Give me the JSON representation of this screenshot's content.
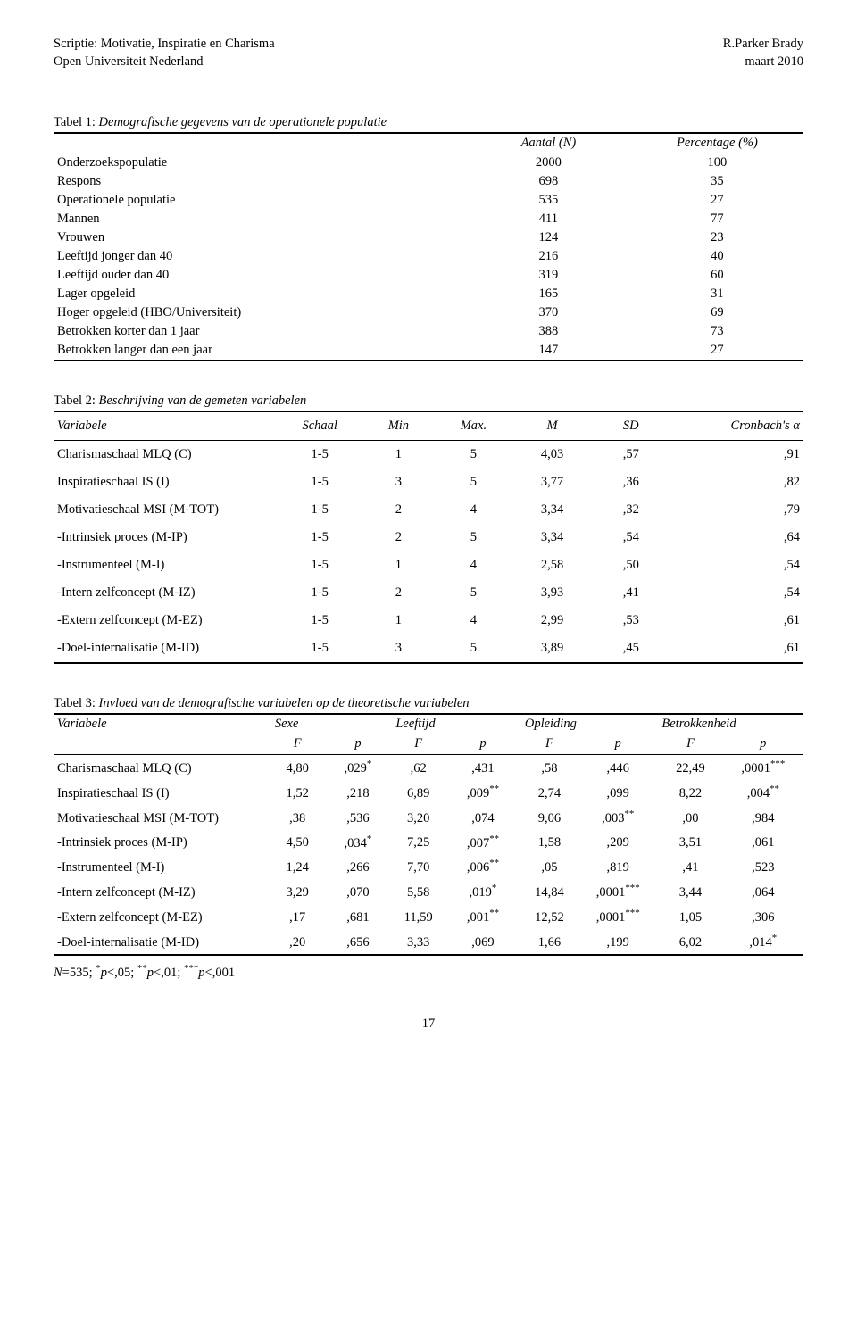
{
  "header": {
    "title": "Scriptie: Motivatie, Inspiratie en Charisma",
    "institution": "Open Universiteit Nederland",
    "author": "R.Parker Brady",
    "date": "maart 2010"
  },
  "table1": {
    "caption_prefix": "Tabel 1: ",
    "caption_body": "Demografische gegevens van de operationele populatie",
    "head": [
      "",
      "Aantal (N)",
      "Percentage (%)"
    ],
    "rows": [
      [
        "Onderzoekspopulatie",
        "2000",
        "100"
      ],
      [
        "Respons",
        "698",
        "35"
      ],
      [
        "Operationele populatie",
        "535",
        "27"
      ],
      [
        "Mannen",
        "411",
        "77"
      ],
      [
        "Vrouwen",
        "124",
        "23"
      ],
      [
        "Leeftijd jonger dan 40",
        "216",
        "40"
      ],
      [
        "Leeftijd ouder dan 40",
        "319",
        "60"
      ],
      [
        "Lager opgeleid",
        "165",
        "31"
      ],
      [
        "Hoger opgeleid (HBO/Universiteit)",
        "370",
        "69"
      ],
      [
        "Betrokken korter dan 1 jaar",
        "388",
        "73"
      ],
      [
        "Betrokken langer dan een jaar",
        "147",
        "27"
      ]
    ]
  },
  "table2": {
    "caption_prefix": "Tabel 2: ",
    "caption_body": "Beschrijving van de gemeten variabelen",
    "head_var": "Variabele",
    "head": [
      "Schaal",
      "Min",
      "Max.",
      "M",
      "SD",
      "Cronbach's α"
    ],
    "rows": [
      [
        "Charismaschaal MLQ (C)",
        "1-5",
        "1",
        "5",
        "4,03",
        ",57",
        ",91"
      ],
      [
        "Inspiratieschaal IS (I)",
        "1-5",
        "3",
        "5",
        "3,77",
        ",36",
        ",82"
      ],
      [
        "Motivatieschaal MSI (M-TOT)",
        "1-5",
        "2",
        "4",
        "3,34",
        ",32",
        ",79"
      ],
      [
        "-Intrinsiek proces (M-IP)",
        "1-5",
        "2",
        "5",
        "3,34",
        ",54",
        ",64"
      ],
      [
        "-Instrumenteel (M-I)",
        "1-5",
        "1",
        "4",
        "2,58",
        ",50",
        ",54"
      ],
      [
        "-Intern zelfconcept (M-IZ)",
        "1-5",
        "2",
        "5",
        "3,93",
        ",41",
        ",54"
      ],
      [
        "-Extern zelfconcept (M-EZ)",
        "1-5",
        "1",
        "4",
        "2,99",
        ",53",
        ",61"
      ],
      [
        "-Doel-internalisatie (M-ID)",
        "1-5",
        "3",
        "5",
        "3,89",
        ",45",
        ",61"
      ]
    ]
  },
  "table3": {
    "caption_prefix": "Tabel 3: ",
    "caption_body": " Invloed van de demografische variabelen op de theoretische variabelen",
    "head_var": "Variabele",
    "groups": [
      "Sexe",
      "Leeftijd",
      "Opleiding",
      "Betrokkenheid"
    ],
    "subhead": [
      "F",
      "p",
      "F",
      "p",
      "F",
      "p",
      "F",
      "p"
    ],
    "rows": [
      {
        "label": "Charismaschaal MLQ (C)",
        "cells": [
          "4,80",
          ",029",
          "*",
          ",62",
          ",431",
          "",
          ",58",
          ",446",
          "",
          "22,49",
          ",0001",
          "***"
        ]
      },
      {
        "label": "Inspiratieschaal IS (I)",
        "cells": [
          "1,52",
          ",218",
          "",
          "6,89",
          ",009",
          "**",
          "2,74",
          ",099",
          "",
          "8,22",
          ",004",
          "**"
        ]
      },
      {
        "label": "Motivatieschaal MSI (M-TOT)",
        "cells": [
          ",38",
          ",536",
          "",
          "3,20",
          ",074",
          "",
          "9,06",
          ",003",
          "**",
          ",00",
          ",984",
          ""
        ]
      },
      {
        "label": "-Intrinsiek proces (M-IP)",
        "cells": [
          "4,50",
          ",034",
          "*",
          "7,25",
          ",007",
          "**",
          "1,58",
          ",209",
          "",
          "3,51",
          ",061",
          ""
        ]
      },
      {
        "label": "-Instrumenteel (M-I)",
        "cells": [
          "1,24",
          ",266",
          "",
          "7,70",
          ",006",
          "**",
          ",05",
          ",819",
          "",
          ",41",
          ",523",
          ""
        ]
      },
      {
        "label": "-Intern zelfconcept (M-IZ)",
        "cells": [
          "3,29",
          ",070",
          "",
          "5,58",
          ",019",
          "*",
          "14,84",
          ",0001",
          "***",
          "3,44",
          ",064",
          ""
        ]
      },
      {
        "label": "-Extern zelfconcept (M-EZ)",
        "cells": [
          ",17",
          ",681",
          "",
          "11,59",
          ",001",
          "**",
          "12,52",
          ",0001",
          "***",
          "1,05",
          ",306",
          ""
        ]
      },
      {
        "label": "-Doel-internalisatie (M-ID)",
        "cells": [
          ",20",
          ",656",
          "",
          "3,33",
          ",069",
          "",
          "1,66",
          ",199",
          "",
          "6,02",
          ",014",
          "*"
        ]
      }
    ],
    "footnote_N": "N",
    "footnote_pre": "=535; ",
    "footnote_s1": "*",
    "footnote_p1": "p",
    "footnote_t1": "<,05;  ",
    "footnote_s2": "**",
    "footnote_p2": "p",
    "footnote_t2": "<,01; ",
    "footnote_s3": "***",
    "footnote_p3": "p",
    "footnote_t3": "<,001"
  },
  "page_number": "17"
}
